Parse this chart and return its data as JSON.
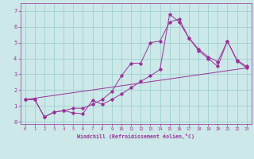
{
  "title": "",
  "xlabel": "Windchill (Refroidissement éolien,°C)",
  "background_color": "#cce8e8",
  "line_color": "#993399",
  "xlim": [
    -0.5,
    23.5
  ],
  "ylim": [
    -0.15,
    7.5
  ],
  "xticks": [
    0,
    1,
    2,
    3,
    4,
    5,
    6,
    7,
    8,
    9,
    10,
    11,
    12,
    13,
    14,
    15,
    16,
    17,
    18,
    19,
    20,
    21,
    22,
    23
  ],
  "yticks": [
    0,
    1,
    2,
    3,
    4,
    5,
    6,
    7
  ],
  "grid_color": "#99cccc",
  "line1_x": [
    0,
    1,
    2,
    3,
    4,
    5,
    6,
    7,
    8,
    9,
    10,
    11,
    12,
    13,
    14,
    15,
    16,
    17,
    18,
    19,
    20,
    21,
    22,
    23
  ],
  "line1_y": [
    1.4,
    1.4,
    0.3,
    0.6,
    0.7,
    0.85,
    0.85,
    1.1,
    1.4,
    1.9,
    2.9,
    3.7,
    3.7,
    5.0,
    5.1,
    6.3,
    6.5,
    5.3,
    4.6,
    4.1,
    3.8,
    5.1,
    3.9,
    3.5
  ],
  "line2_x": [
    0,
    1,
    2,
    3,
    4,
    5,
    6,
    7,
    8,
    9,
    10,
    11,
    12,
    13,
    14,
    15,
    16,
    17,
    18,
    19,
    20,
    21,
    22,
    23
  ],
  "line2_y": [
    1.4,
    1.4,
    0.3,
    0.6,
    0.7,
    0.55,
    0.5,
    1.35,
    1.1,
    1.4,
    1.75,
    2.15,
    2.55,
    2.9,
    3.3,
    6.8,
    6.3,
    5.3,
    4.5,
    4.0,
    3.5,
    5.1,
    3.85,
    3.4
  ],
  "line3_x": [
    0,
    23
  ],
  "line3_y": [
    1.4,
    3.4
  ]
}
